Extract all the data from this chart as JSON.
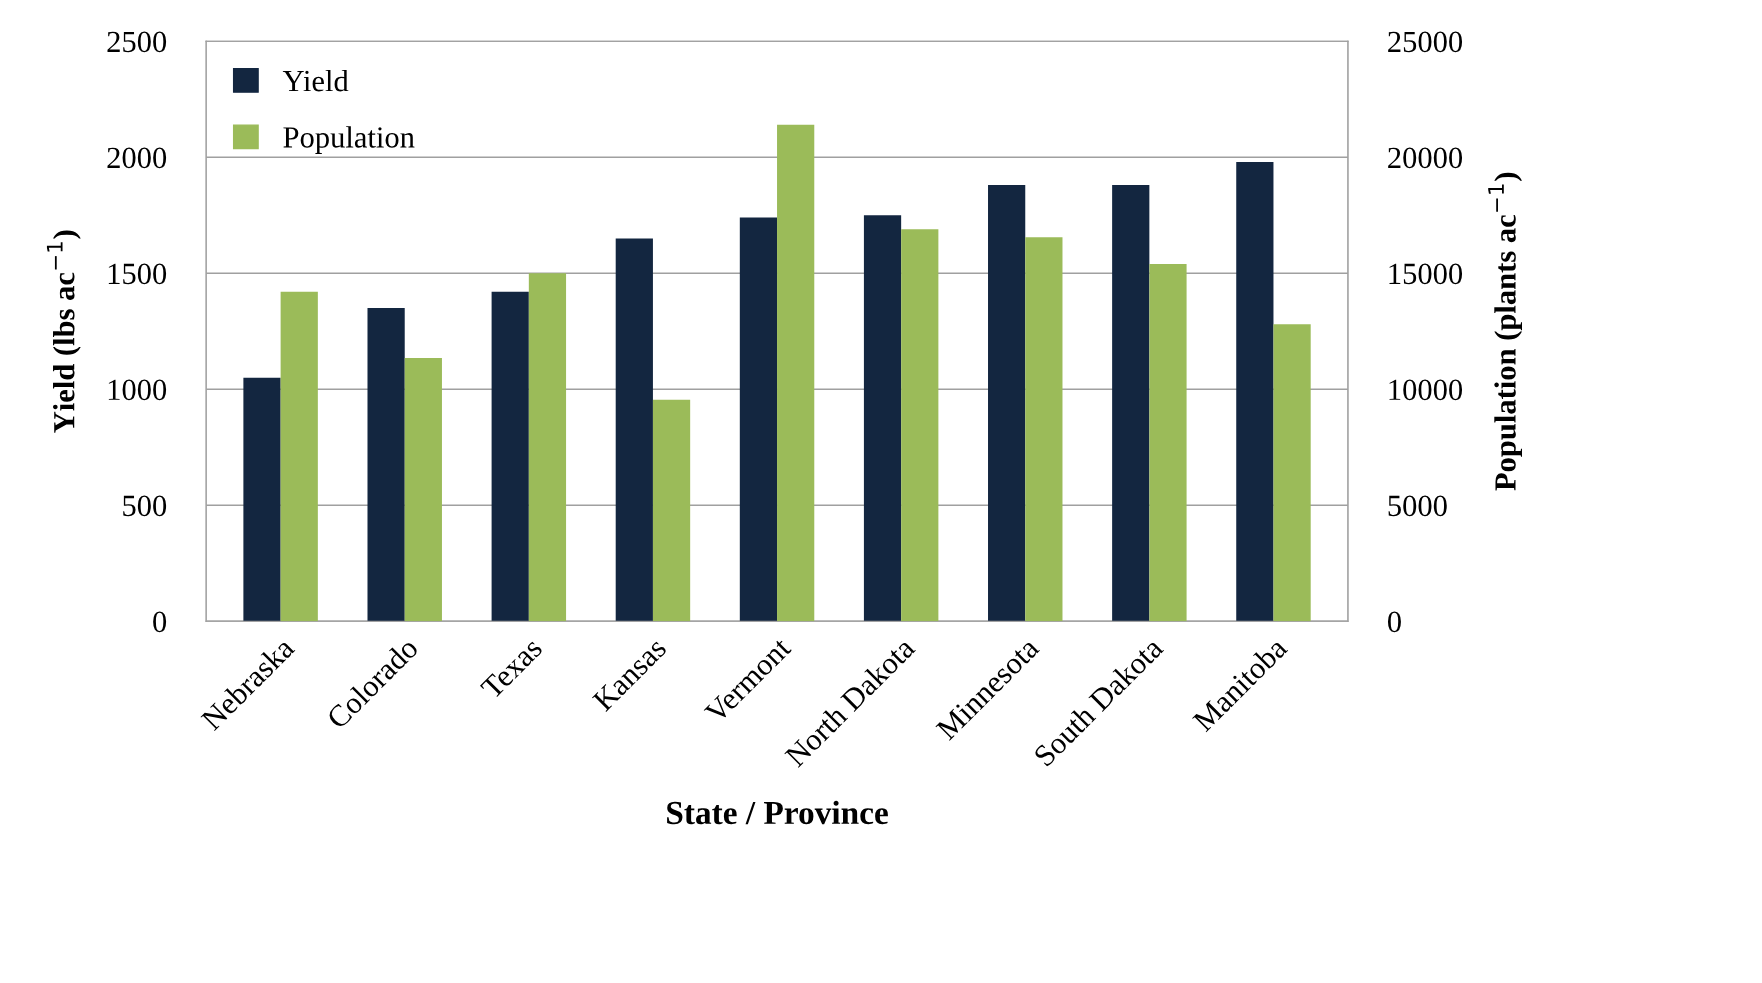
{
  "chart_data": {
    "type": "bar",
    "xlabel": "State / Province",
    "ylabel": "Yield (lbs ac$^{−1}$)",
    "y2label": "Population (plants ac$^{−1}$)",
    "categories": [
      "Nebraska",
      "Colorado",
      "Texas",
      "Kansas",
      "Vermont",
      "North Dakota",
      "Minnesota",
      "South Dakota",
      "Manitoba"
    ],
    "series": [
      {
        "name": "Yield",
        "color": "#132640",
        "values": [
          1050,
          1350,
          1420,
          1650,
          1740,
          1750,
          1880,
          1880,
          1980
        ]
      },
      {
        "name": "Population",
        "color": "#9bbb59",
        "axis": "y2",
        "values": [
          14200,
          11350,
          15000,
          9550,
          21400,
          16900,
          16550,
          15400,
          12800
        ]
      }
    ],
    "ylim": [
      0,
      2500
    ],
    "yticks": [
      0,
      500,
      1000,
      1500,
      2000,
      2500
    ],
    "y2lim": [
      0,
      25000
    ],
    "y2ticks": [
      0,
      5000,
      10000,
      15000,
      20000,
      25000
    ],
    "grid": "y",
    "legend": "top left"
  }
}
